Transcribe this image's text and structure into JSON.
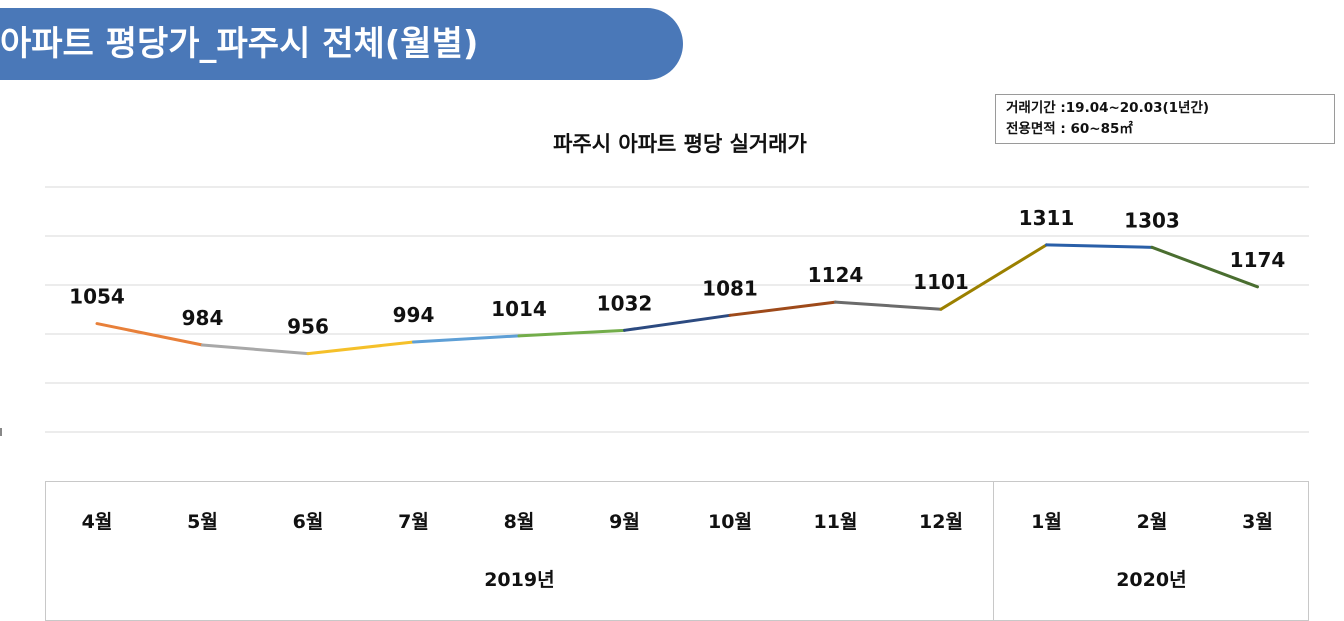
{
  "header": {
    "title": "아파트 평당가_파주시 전체(월별)"
  },
  "info": {
    "line1": "거래기간 :19.04~20.03(1년간)",
    "line2": "전용면적 : 60~85㎡"
  },
  "chart_data": {
    "type": "line",
    "title": "파주시 아파트 평당 실거래가",
    "categories": [
      "4월",
      "5월",
      "6월",
      "7월",
      "8월",
      "9월",
      "10월",
      "11월",
      "12월",
      "1월",
      "2월",
      "3월"
    ],
    "values": [
      1054,
      984,
      956,
      994,
      1014,
      1032,
      1081,
      1124,
      1101,
      1311,
      1303,
      1174
    ],
    "segment_colors": [
      "#e8803a",
      "#a8a8a8",
      "#f5c02a",
      "#5e9fd6",
      "#73ad4a",
      "#2c4a80",
      "#9e4a1a",
      "#6b6b6b",
      "#9b8000",
      "#2a5fa8",
      "#4a6e30"
    ],
    "groups": [
      {
        "label": "2019년",
        "span": 9
      },
      {
        "label": "2020년",
        "span": 3
      }
    ],
    "ylim": [
      700,
      1500
    ],
    "grid": true,
    "xlabel": "",
    "ylabel": ""
  }
}
